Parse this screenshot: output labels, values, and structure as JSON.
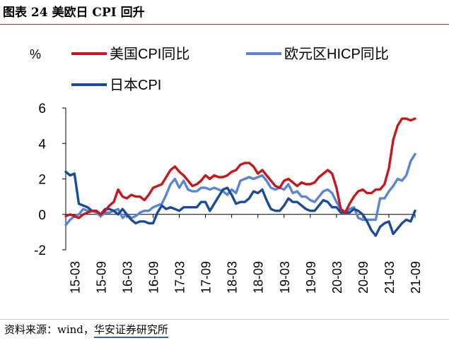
{
  "figure": {
    "title": "图表 24  美欧日 CPI 回升",
    "source_prefix": "资料来源：wind，",
    "source_org": "华安证券研究所"
  },
  "colors": {
    "us": "#c8161d",
    "eu": "#5a85d6",
    "jp": "#1a4b9a",
    "title_rule": "#b22a2a",
    "source_underline": "#2e66b0"
  },
  "chart_data": {
    "type": "line",
    "ylabel": "%",
    "ylim": [
      -2,
      6
    ],
    "yticks": [
      -2,
      0,
      2,
      4,
      6
    ],
    "ytick_labels": [
      "-2",
      "0",
      "2",
      "4",
      "6"
    ],
    "grid": false,
    "legend_position": "top",
    "xtick_labels": [
      "15-03",
      "15-09",
      "16-03",
      "16-09",
      "17-03",
      "17-09",
      "18-03",
      "18-09",
      "19-03",
      "19-09",
      "20-03",
      "20-09",
      "21-03",
      "21-09"
    ],
    "start_month": "2015-01",
    "end_month": "2021-09",
    "series": [
      {
        "name": "美国CPI同比",
        "color": "#c8161d",
        "values": [
          -0.1,
          0,
          -0.1,
          -0.2,
          0,
          0.1,
          0.2,
          0.2,
          0,
          0.2,
          0.5,
          0.7,
          1.4,
          1,
          0.9,
          1.1,
          1,
          1,
          0.8,
          1.1,
          1.5,
          1.6,
          1.7,
          2.1,
          2.5,
          2.7,
          2.4,
          2.2,
          1.9,
          1.6,
          1.7,
          1.9,
          2.2,
          2,
          2.2,
          2.1,
          2.1,
          2.2,
          2.4,
          2.5,
          2.8,
          2.9,
          2.9,
          2.7,
          2.3,
          2.5,
          2.2,
          1.9,
          1.6,
          1.5,
          1.9,
          2,
          1.8,
          1.6,
          1.8,
          1.7,
          1.7,
          1.8,
          2.1,
          2.3,
          2.5,
          2.3,
          1.5,
          0.3,
          0.1,
          0.6,
          1,
          1.3,
          1.4,
          1.2,
          1.2,
          1.4,
          1.4,
          1.7,
          2.6,
          4.2,
          5,
          5.4,
          5.4,
          5.3,
          5.4
        ]
      },
      {
        "name": "欧元区HICP同比",
        "color": "#5a85d6",
        "values": [
          -0.6,
          -0.3,
          -0.1,
          0,
          0.3,
          0.2,
          0.2,
          0.1,
          -0.1,
          0.1,
          0.1,
          0.2,
          0.3,
          -0.2,
          0,
          -0.2,
          -0.1,
          0.1,
          0.2,
          0.2,
          0.4,
          0.5,
          0.6,
          1.1,
          1.7,
          2,
          1.5,
          1.9,
          1.4,
          1.3,
          1.3,
          1.5,
          1.5,
          1.4,
          1.5,
          1.4,
          1.3,
          1.1,
          1.4,
          1.2,
          1.9,
          2,
          2.1,
          2,
          2.1,
          2.2,
          1.9,
          1.5,
          1.4,
          1.5,
          1.4,
          1.7,
          1.2,
          1.3,
          1,
          1,
          0.8,
          0.7,
          1,
          1.3,
          1.4,
          1.2,
          0.7,
          0.3,
          0.1,
          0.3,
          0.4,
          -0.2,
          -0.3,
          -0.3,
          -0.3,
          -0.3,
          0.9,
          0.9,
          1.3,
          1.6,
          2,
          1.9,
          2.2,
          3,
          3.4
        ]
      },
      {
        "name": "日本CPI",
        "color": "#1a4b9a",
        "values": [
          2.4,
          2.2,
          2.3,
          0.6,
          0.5,
          0.4,
          0.2,
          0.2,
          0,
          0.3,
          0.3,
          0.2,
          0,
          0.3,
          0,
          -0.3,
          -0.5,
          -0.4,
          -0.4,
          -0.5,
          -0.5,
          0.1,
          0.5,
          0.3,
          0.4,
          0.3,
          0.2,
          0.4,
          0.4,
          0.4,
          0.4,
          0.7,
          0.7,
          0.2,
          0.6,
          1,
          1.4,
          1.5,
          1.1,
          0.6,
          0.7,
          0.7,
          0.9,
          1.3,
          1.2,
          1.4,
          0.8,
          0.3,
          0.2,
          0.2,
          0.5,
          0.9,
          0.7,
          0.7,
          0.5,
          0.3,
          0.2,
          0.2,
          0.5,
          0.8,
          0.7,
          0.4,
          0.4,
          0.1,
          0.1,
          0.1,
          0.3,
          0.2,
          0,
          -0.4,
          -0.9,
          -1.2,
          -0.7,
          -0.5,
          -0.4,
          -1.1,
          -0.8,
          -0.5,
          -0.3,
          -0.4,
          0.2
        ]
      }
    ]
  }
}
